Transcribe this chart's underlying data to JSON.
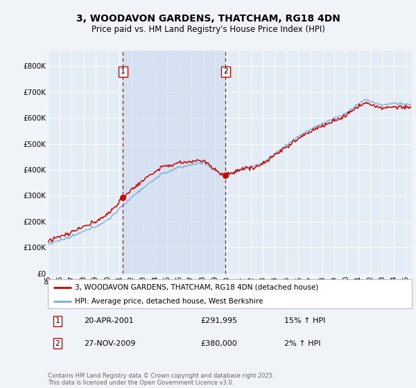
{
  "title": "3, WOODAVON GARDENS, THATCHAM, RG18 4DN",
  "subtitle": "Price paid vs. HM Land Registry's House Price Index (HPI)",
  "ylabel_ticks": [
    "£0",
    "£100K",
    "£200K",
    "£300K",
    "£400K",
    "£500K",
    "£600K",
    "£700K",
    "£800K"
  ],
  "ytick_values": [
    0,
    100000,
    200000,
    300000,
    400000,
    500000,
    600000,
    700000,
    800000
  ],
  "ylim": [
    0,
    860000
  ],
  "xlim": [
    1995,
    2025.5
  ],
  "background_color": "#f0f4f8",
  "plot_bg_color": "#e4edf5",
  "shade_color": "#ccdaed",
  "grid_color": "#ffffff",
  "line1_color": "#cc0000",
  "line2_color": "#7aadd4",
  "sale1_year": 2001.3,
  "sale1_price": 291995,
  "sale2_year": 2009.9,
  "sale2_price": 380000,
  "legend_label1": "3, WOODAVON GARDENS, THATCHAM, RG18 4DN (detached house)",
  "legend_label2": "HPI: Average price, detached house, West Berkshire",
  "annotation1_date": "20-APR-2001",
  "annotation1_price": "£291,995",
  "annotation1_hpi": "15% ↑ HPI",
  "annotation2_date": "27-NOV-2009",
  "annotation2_price": "£380,000",
  "annotation2_hpi": "2% ↑ HPI",
  "footer": "Contains HM Land Registry data © Crown copyright and database right 2025.\nThis data is licensed under the Open Government Licence v3.0."
}
